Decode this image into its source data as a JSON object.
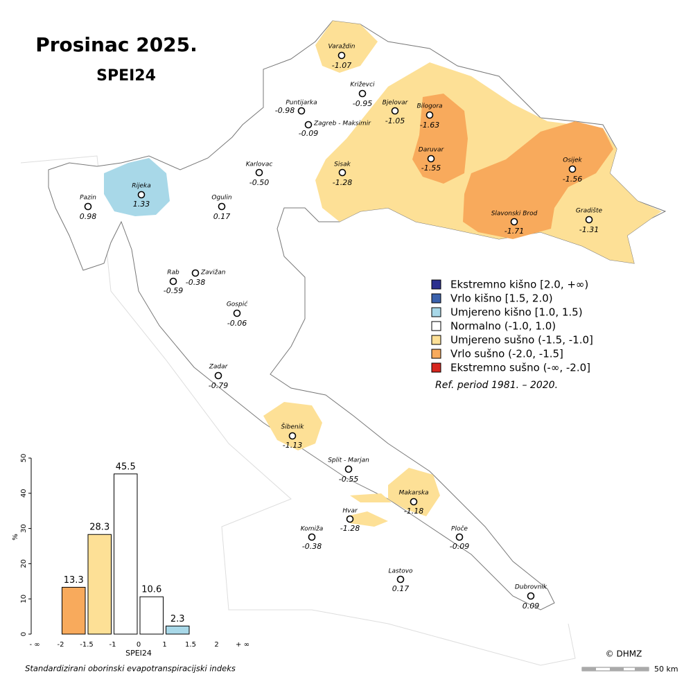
{
  "header": {
    "title": "Prosinac 2025.",
    "subtitle": "SPEI24"
  },
  "stations": [
    {
      "name": "Varaždin",
      "value": -1.07
    },
    {
      "name": "Križevci",
      "value": -0.95
    },
    {
      "name": "Puntijarka",
      "value": -0.98
    },
    {
      "name": "Bjelovar",
      "value": -1.05
    },
    {
      "name": "Bilogora",
      "value": -1.63
    },
    {
      "name": "Zagreb - Maksimir",
      "value": -0.09
    },
    {
      "name": "Daruvar",
      "value": -1.55
    },
    {
      "name": "Karlovac",
      "value": -0.5,
      "label": "-0.50"
    },
    {
      "name": "Sisak",
      "value": -1.28
    },
    {
      "name": "Osijek",
      "value": -1.56
    },
    {
      "name": "Rijeka",
      "value": 1.33
    },
    {
      "name": "Pazin",
      "value": 0.98
    },
    {
      "name": "Ogulin",
      "value": 0.17
    },
    {
      "name": "Slavonski Brod",
      "value": -1.71
    },
    {
      "name": "Gradište",
      "value": -1.31
    },
    {
      "name": "Zavižan",
      "value": -0.38
    },
    {
      "name": "Rab",
      "value": -0.59
    },
    {
      "name": "Gospić",
      "value": -0.06
    },
    {
      "name": "Zadar",
      "value": -0.79
    },
    {
      "name": "Šibenik",
      "value": -1.13
    },
    {
      "name": "Split - Marjan",
      "value": -0.55
    },
    {
      "name": "Makarska",
      "value": -1.18
    },
    {
      "name": "Hvar",
      "value": -1.28
    },
    {
      "name": "Komiža",
      "value": -0.38
    },
    {
      "name": "Ploče",
      "value": -0.09
    },
    {
      "name": "Lastovo",
      "value": 0.17
    },
    {
      "name": "Dubrovnik",
      "value": 0.09
    }
  ],
  "legend": [
    {
      "label": "Ekstremno kišno [2.0, +∞)",
      "color": "#2b2f8f"
    },
    {
      "label": "Vrlo kišno [1.5, 2.0)",
      "color": "#3b62ad"
    },
    {
      "label": "Umjereno kišno [1.0, 1.5)",
      "color": "#a8d8e8"
    },
    {
      "label": "Normalno (-1.0, 1.0)",
      "color": "#ffffff"
    },
    {
      "label": "Umjereno sušno (-1.5, -1.0]",
      "color": "#fde096"
    },
    {
      "label": "Vrlo sušno (-2.0, -1.5]",
      "color": "#f8aa5c"
    },
    {
      "label": "Ekstremno sušno (-∞, -2.0]",
      "color": "#d7261e"
    }
  ],
  "ref_period": "Ref. period 1981. – 2020.",
  "chart_data": {
    "type": "bar",
    "subtitle": "Standardizirani oborinski evapotranspiracijski indeks",
    "xlabel": "SPEI24",
    "ylabel": "%",
    "edge_labels": [
      "- ∞",
      "-2",
      "-1.5",
      "-1",
      "0",
      "1",
      "1.5",
      "2",
      "+ ∞"
    ],
    "values": [
      0,
      13.3,
      28.3,
      45.5,
      10.6,
      2.3,
      0,
      0
    ],
    "colors": [
      "#d7261e",
      "#f8aa5c",
      "#fde096",
      "#ffffff",
      "#ffffff",
      "#a8d8e8",
      "#3b62ad",
      "#2b2f8f"
    ],
    "ylim": [
      0,
      50
    ],
    "yticks": [
      0,
      10,
      20,
      30,
      40,
      50
    ]
  },
  "credit": "© DHMZ",
  "scale": "50 km"
}
